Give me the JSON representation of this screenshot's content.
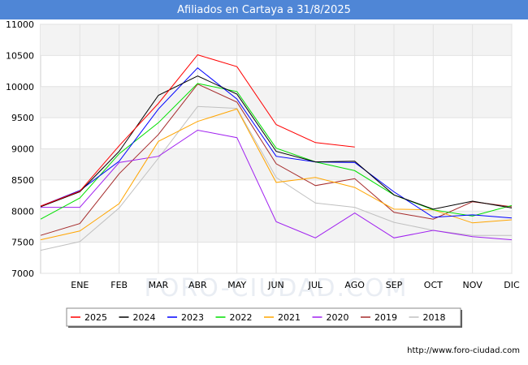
{
  "header": {
    "title": "Afiliados en Cartaya a 31/8/2025"
  },
  "source": "http://www.foro-ciudad.com",
  "watermark": "FORO-CIUDAD.COM",
  "chart_data": {
    "type": "line",
    "title": "Afiliados en Cartaya a 31/8/2025",
    "categories": [
      "",
      "ENE",
      "FEB",
      "MAR",
      "ABR",
      "MAY",
      "JUN",
      "JUL",
      "AGO",
      "SEP",
      "OCT",
      "NOV",
      "DIC"
    ],
    "ylim": [
      7000,
      11000
    ],
    "yticks": [
      7000,
      7500,
      8000,
      8500,
      9000,
      9500,
      10000,
      10500,
      11000
    ],
    "grid": true,
    "legend_position": "bottom",
    "series": [
      {
        "name": "2025",
        "color": "#ff0000",
        "values": [
          8080,
          8320,
          9050,
          9730,
          10510,
          10320,
          9390,
          9100,
          9030,
          null,
          null,
          null,
          null
        ]
      },
      {
        "name": "2024",
        "color": "#000000",
        "values": [
          8070,
          8310,
          8960,
          9860,
          10170,
          9880,
          8960,
          8790,
          8800,
          8260,
          8030,
          8160,
          8050
        ]
      },
      {
        "name": "2023",
        "color": "#0000ff",
        "values": [
          8080,
          8330,
          8800,
          9640,
          10300,
          9800,
          8880,
          8790,
          8780,
          8310,
          7900,
          7940,
          7890
        ]
      },
      {
        "name": "2022",
        "color": "#00e000",
        "values": [
          7870,
          8210,
          8920,
          9420,
          10050,
          9920,
          9010,
          8790,
          8650,
          8260,
          8020,
          7920,
          8090
        ]
      },
      {
        "name": "2021",
        "color": "#ffa500",
        "values": [
          7540,
          7680,
          8120,
          9120,
          9440,
          9640,
          8460,
          8540,
          8380,
          8030,
          8020,
          7810,
          7860
        ]
      },
      {
        "name": "2020",
        "color": "#a020f0",
        "values": [
          8060,
          8060,
          8780,
          8880,
          9300,
          9180,
          7830,
          7570,
          7970,
          7570,
          7690,
          7590,
          7540
        ]
      },
      {
        "name": "2019",
        "color": "#a52a2a",
        "values": [
          7610,
          7800,
          8600,
          9230,
          10040,
          9750,
          8760,
          8410,
          8520,
          7980,
          7870,
          8150,
          8070
        ]
      },
      {
        "name": "2018",
        "color": "#c0c0c0",
        "values": [
          7370,
          7510,
          8050,
          8850,
          9680,
          9650,
          8540,
          8130,
          8060,
          7820,
          7690,
          7610,
          7610
        ]
      }
    ]
  }
}
